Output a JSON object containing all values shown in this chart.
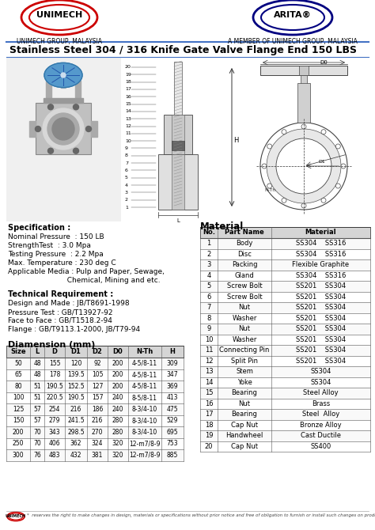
{
  "title": "Stainless Steel 304 / 316 Knife Gate Valve Flange End 150 LBS",
  "company_left": "UNIMECH",
  "company_left_sub": "UNIMECH GROUP, MALAYSIA",
  "company_right": "ARITA",
  "company_right_sub": "A MEMBER OF UNIMECH GROUP, MALAYSIA",
  "spec_title": "Specification :",
  "spec_lines": [
    "Nominal Pressure  : 150 LB",
    "StrengthTest  : 3.0 Mpa",
    "Testing Pressure  : 2.2 Mpa",
    "Max. Temperature : 230 deg C",
    "Applicable Media : Pulp and Paper, Sewage,",
    "                          Chemical, Mining and etc."
  ],
  "tech_title": "Technical Requirement :",
  "tech_lines": [
    "Design and Made : JB/T8691-1998",
    "Pressure Test : GB/T13927-92",
    "Face to Face : GB/T1518.2-94",
    "Flange : GB/T9113.1-2000, JB/T79-94"
  ],
  "dim_title": "Diamension (mm)",
  "dim_headers": [
    "Size",
    "L",
    "D",
    "D1",
    "D2",
    "D0",
    "N-Th",
    "H"
  ],
  "dim_data": [
    [
      "50",
      "48",
      "155",
      "120",
      "92",
      "200",
      "4-5/8-11",
      "309"
    ],
    [
      "65",
      "48",
      "178",
      "139.5",
      "105",
      "200",
      "4-5/8-11",
      "347"
    ],
    [
      "80",
      "51",
      "190.5",
      "152.5",
      "127",
      "200",
      "4-5/8-11",
      "369"
    ],
    [
      "100",
      "51",
      "220.5",
      "190.5",
      "157",
      "240",
      "8-5/8-11",
      "413"
    ],
    [
      "125",
      "57",
      "254",
      "216",
      "186",
      "240",
      "8-3/4-10",
      "475"
    ],
    [
      "150",
      "57",
      "279",
      "241.5",
      "216",
      "280",
      "8-3/4-10",
      "529"
    ],
    [
      "200",
      "70",
      "343",
      "298.5",
      "270",
      "280",
      "8-3/4-10",
      "695"
    ],
    [
      "250",
      "70",
      "406",
      "362",
      "324",
      "320",
      "12-m7/8-9",
      "753"
    ],
    [
      "300",
      "76",
      "483",
      "432",
      "381",
      "320",
      "12-m7/8-9",
      "885"
    ]
  ],
  "mat_title": "Material",
  "mat_headers": [
    "No.",
    "Part Name",
    "Material"
  ],
  "mat_data": [
    [
      "1",
      "Body",
      "SS304    SS316"
    ],
    [
      "2",
      "Disc",
      "SS304    SS316"
    ],
    [
      "3",
      "Packing",
      "Flexible Graphite"
    ],
    [
      "4",
      "Gland",
      "SS304    SS316"
    ],
    [
      "5",
      "Screw Bolt",
      "SS201    SS304"
    ],
    [
      "6",
      "Screw Bolt",
      "SS201    SS304"
    ],
    [
      "7",
      "Nut",
      "SS201    SS304"
    ],
    [
      "8",
      "Washer",
      "SS201    SS304"
    ],
    [
      "9",
      "Nut",
      "SS201    SS304"
    ],
    [
      "10",
      "Washer",
      "SS201    SS304"
    ],
    [
      "11",
      "Connecting Pin",
      "SS201    SS304"
    ],
    [
      "12",
      "Split Pin",
      "SS201    SS304"
    ],
    [
      "13",
      "Stem",
      "SS304"
    ],
    [
      "14",
      "Yoke",
      "SS304"
    ],
    [
      "15",
      "Bearing",
      "Steel Alloy"
    ],
    [
      "16",
      "Nut",
      "Brass"
    ],
    [
      "17",
      "Bearing",
      "Steel  Alloy"
    ],
    [
      "18",
      "Cap Nut",
      "Bronze Alloy"
    ],
    [
      "19",
      "Handwheel",
      "Cast Ductile"
    ],
    [
      "20",
      "Cap Nut",
      "SS400"
    ]
  ],
  "footer": "reserves the right to make changes in design, materials or specifications without prior notice and free of obligation to furnish or install such changes on products previously sold.",
  "bg_color": "#ffffff",
  "blue_line_color": "#4472c4",
  "red_color": "#cc0000",
  "navy_color": "#000080",
  "header_bg": "#e8e8e8"
}
